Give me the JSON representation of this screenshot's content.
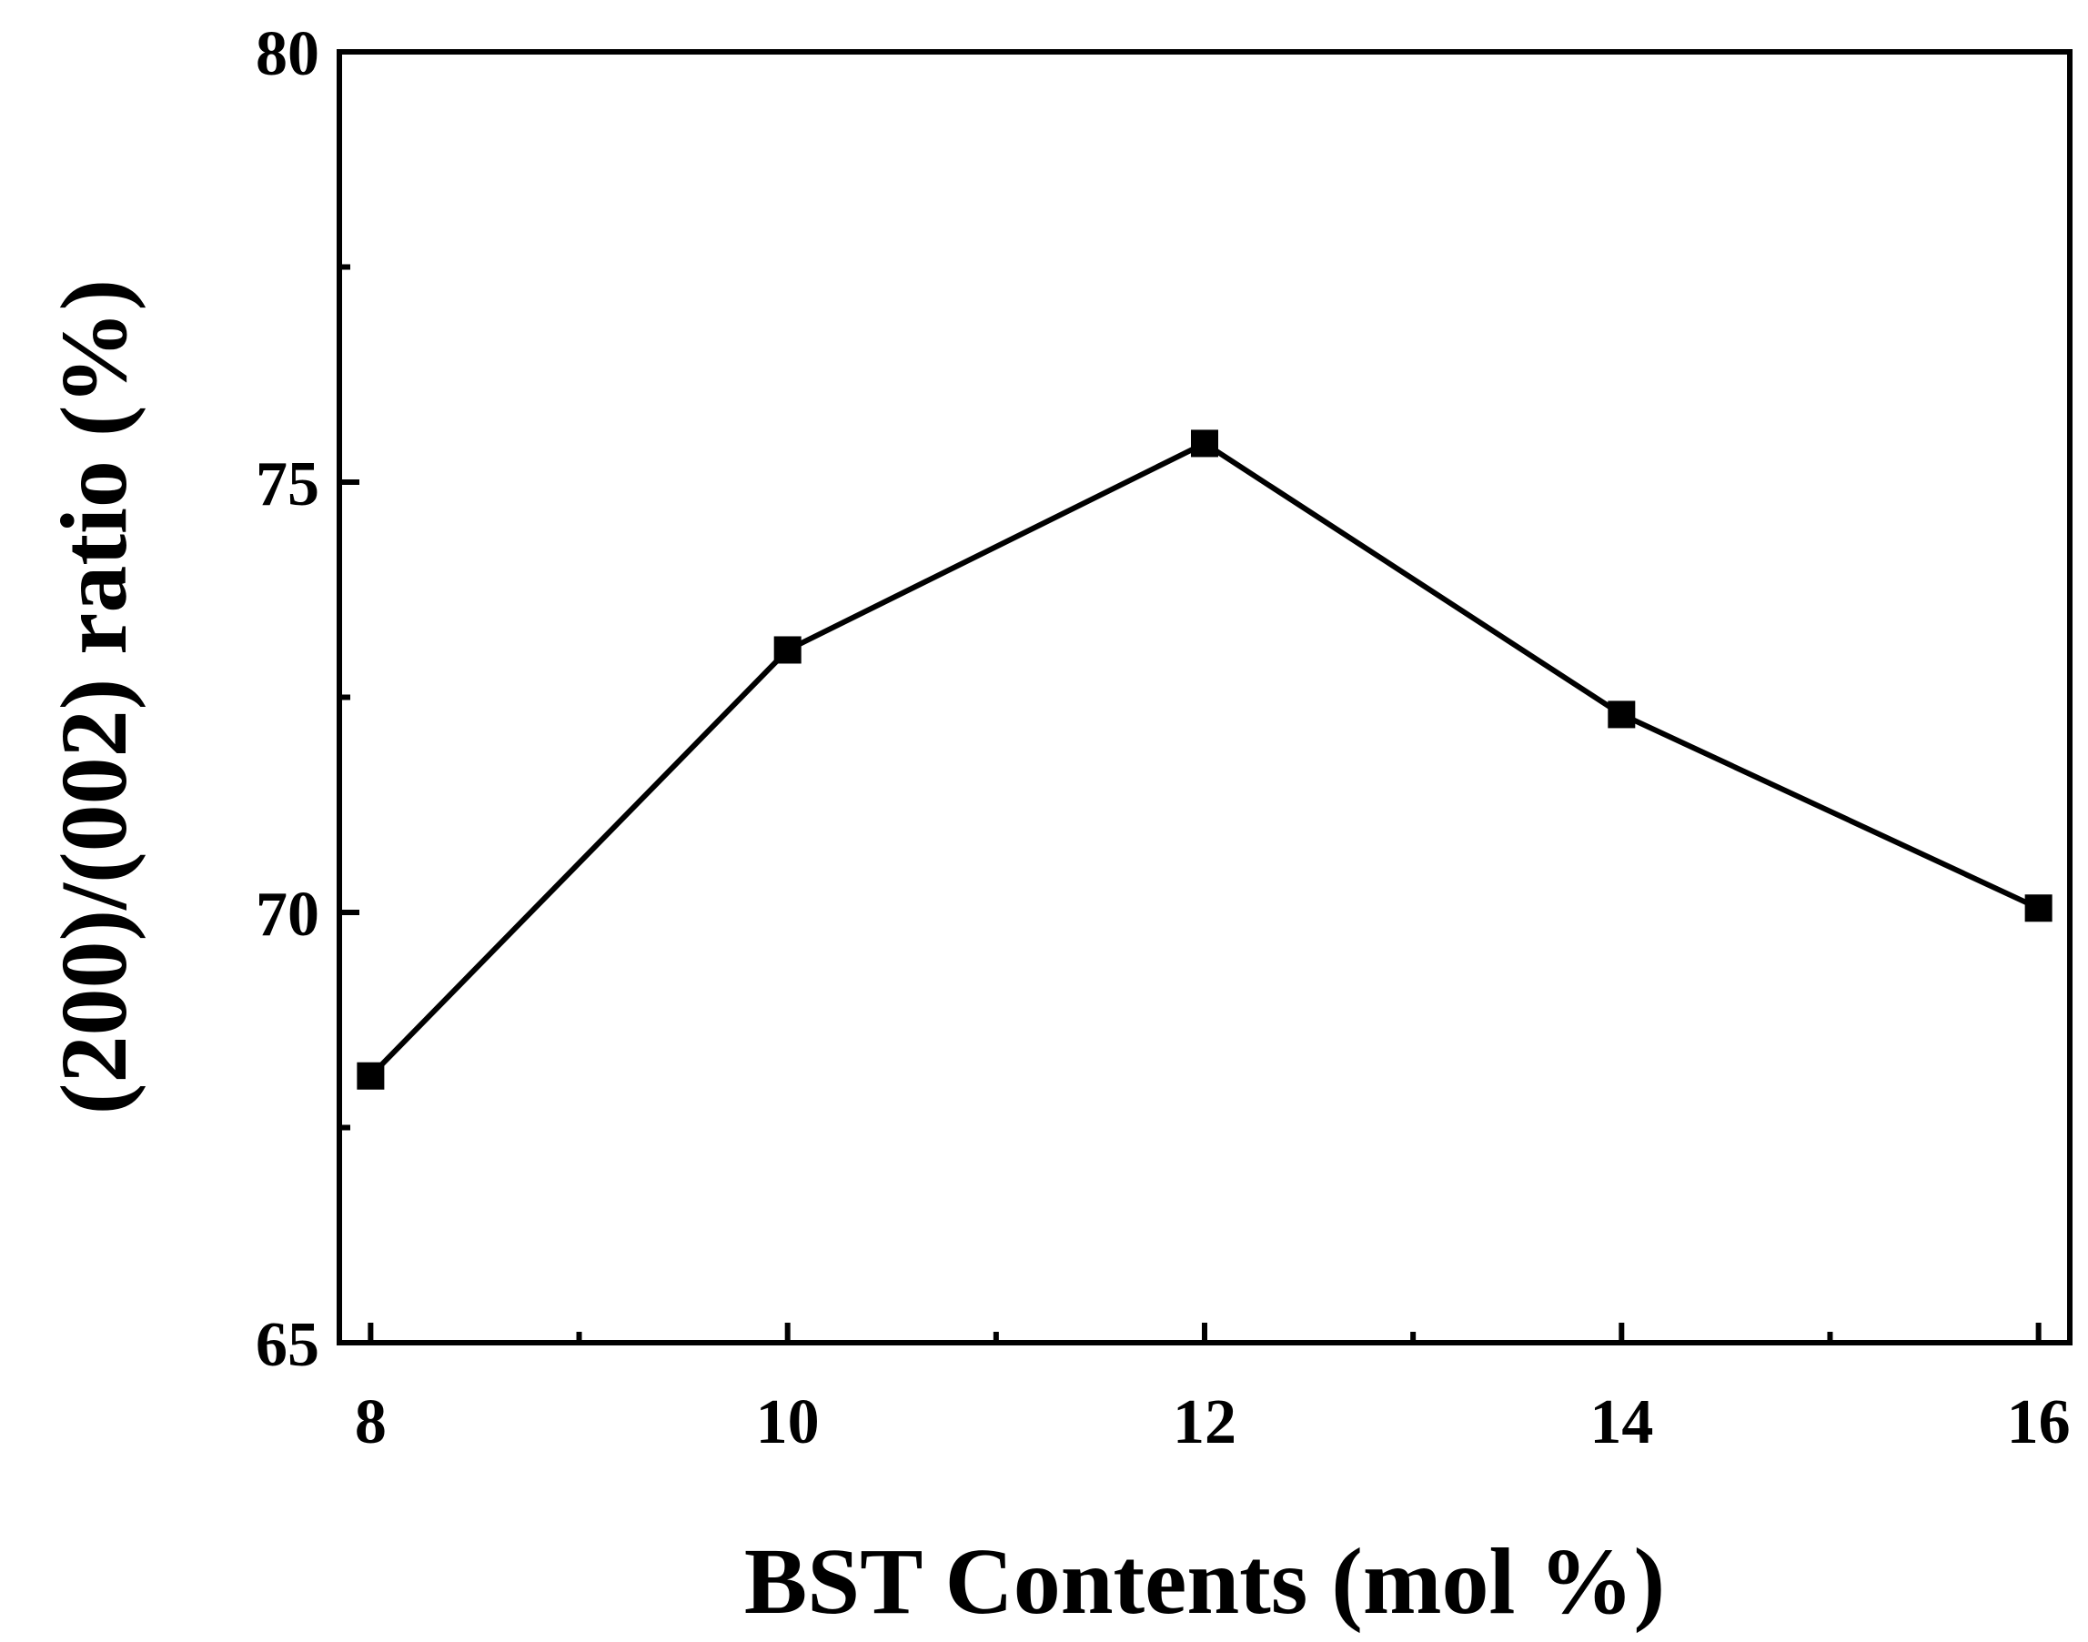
{
  "chart_data": {
    "type": "line",
    "title": "",
    "xlabel": "BST Contents (mol %)",
    "ylabel": "(200)/(002) ratio (%)",
    "xlim": [
      7.85,
      16.15
    ],
    "ylim": [
      65,
      80
    ],
    "x_ticks": [
      8,
      10,
      12,
      14,
      16
    ],
    "x_tick_labels": [
      "8",
      "10",
      "12",
      "14",
      "16"
    ],
    "x_minor_ticks": [
      9,
      11,
      13,
      15
    ],
    "y_ticks": [
      65,
      70,
      75,
      80
    ],
    "y_tick_labels": [
      "65",
      "70",
      "75",
      "80"
    ],
    "y_minor_ticks": [
      67.5,
      72.5,
      77.5
    ],
    "grid": false,
    "legend": "none",
    "marker": "square",
    "color": "#000000",
    "series": [
      {
        "x": [
          8,
          10,
          12,
          14,
          16
        ],
        "values": [
          68.1,
          73.05,
          75.45,
          72.3,
          70.05
        ]
      }
    ]
  }
}
